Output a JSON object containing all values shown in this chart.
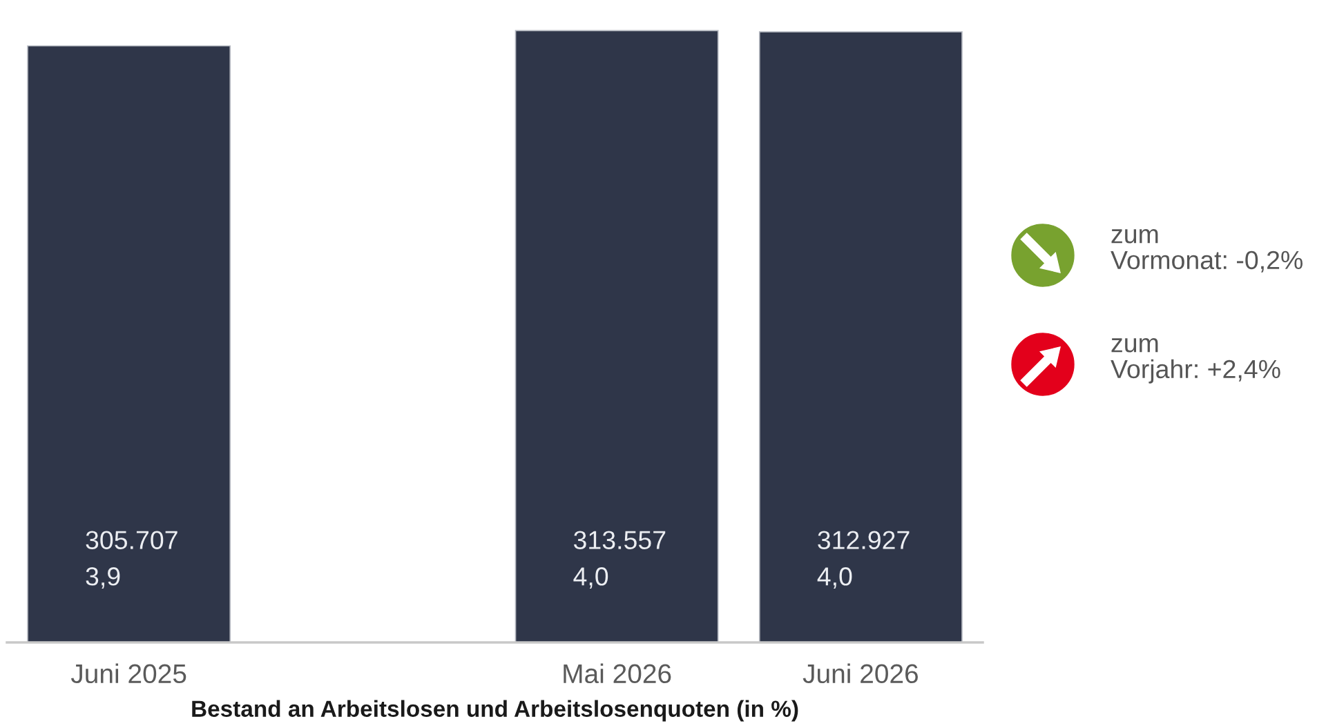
{
  "chart_data": {
    "type": "bar",
    "categories": [
      "Juni 2025",
      null,
      "Mai 2026",
      "Juni 2026"
    ],
    "values": [
      305707,
      null,
      313557,
      312927
    ],
    "value_labels": [
      "305.707\n3,9",
      null,
      "313.557\n4,0",
      "312.927\n4,0"
    ],
    "color": "#2f3649",
    "xlabel": "Bestand an Arbeitslosen und Arbeitslosenquoten (in %)",
    "annotations": [
      "zum\nVormonat: -0,2%",
      "zum\nVorjahr: +2,4%"
    ],
    "tick_labels": "x"
  }
}
